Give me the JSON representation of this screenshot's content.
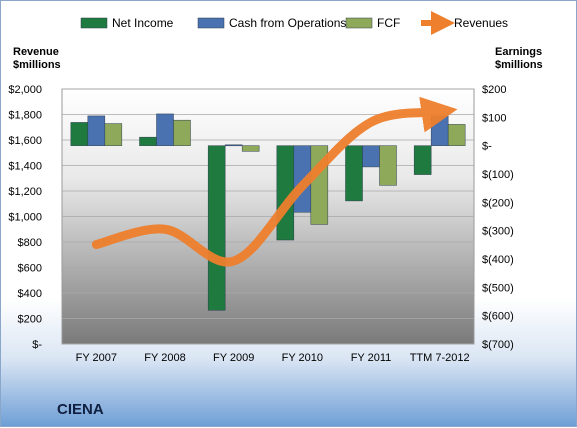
{
  "company": "CIENA",
  "left_axis_title": [
    "Revenue",
    "$millions"
  ],
  "right_axis_title": [
    "Earnings",
    "$millions"
  ],
  "colors": {
    "net_income": "#1f7a3f",
    "cash_from_operations": "#4a72b0",
    "fcf": "#8fa95a",
    "revenues": "#ee7f2d"
  },
  "chart_data": {
    "type": "bar+line",
    "categories": [
      "FY 2007",
      "FY 2008",
      "FY 2009",
      "FY 2010",
      "FY 2011",
      "TTM 7-2012"
    ],
    "legend": [
      "Net Income",
      "Cash from Operations",
      "FCF",
      "Revenues"
    ],
    "legend_position": "top",
    "left_axis": {
      "min": 0,
      "max": 2000,
      "ticks": [
        0,
        200,
        400,
        600,
        800,
        1000,
        1200,
        1400,
        1600,
        1800,
        2000
      ],
      "tick_labels": [
        "$-",
        "$200",
        "$400",
        "$600",
        "$800",
        "$1,000",
        "$1,200",
        "$1,400",
        "$1,600",
        "$1,800",
        "$2,000"
      ]
    },
    "right_axis": {
      "min": -700,
      "max": 200,
      "ticks": [
        200,
        100,
        0,
        -100,
        -200,
        -300,
        -400,
        -500,
        -600,
        -700
      ],
      "tick_labels": [
        "$200",
        "$100",
        "$-",
        "$(100)",
        "$(200)",
        "$(300)",
        "$(400)",
        "$(500)",
        "$(600)",
        "$(700)"
      ]
    },
    "series": [
      {
        "name": "Net Income",
        "axis": "right",
        "values": [
          82,
          30,
          -581,
          -333,
          -195,
          -102
        ]
      },
      {
        "name": "Cash from Operations",
        "axis": "right",
        "values": [
          105,
          112,
          3,
          -235,
          -75,
          105
        ]
      },
      {
        "name": "FCF",
        "axis": "right",
        "values": [
          78,
          90,
          -20,
          -278,
          -140,
          75
        ]
      },
      {
        "name": "Revenues",
        "axis": "left",
        "type": "line",
        "values": [
          780,
          900,
          650,
          1240,
          1740,
          1820
        ]
      }
    ],
    "grid": "horizontal"
  }
}
